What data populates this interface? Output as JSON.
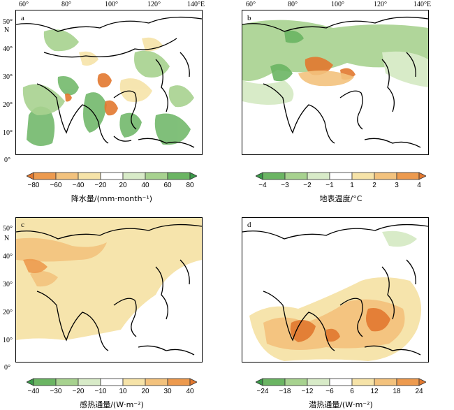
{
  "lon_labels_top": [
    "60°",
    "80°",
    "100°",
    "120°",
    "140°E"
  ],
  "lat_labels": [
    "50°",
    "40°",
    "30°",
    "20°",
    "10°",
    "0°"
  ],
  "lat_letter": "N",
  "panels": {
    "a": {
      "label": "a",
      "colorbar_title": "降水量/(mm·month⁻¹)",
      "ticks": [
        "−80",
        "−60",
        "−40",
        "−20",
        "20",
        "40",
        "60",
        "80"
      ],
      "colors": [
        "#e2782f",
        "#ed9a4e",
        "#f3c27d",
        "#f6e3a8",
        "#ffffff",
        "#d8ebc8",
        "#a7d28f",
        "#6bb563",
        "#3b9a4a"
      ]
    },
    "b": {
      "label": "b",
      "colorbar_title": "地表温度/°C",
      "ticks": [
        "−4",
        "−3",
        "−2",
        "−1",
        "1",
        "2",
        "3",
        "4"
      ],
      "colors": [
        "#3b9a4a",
        "#6bb563",
        "#a7d28f",
        "#d8ebc8",
        "#ffffff",
        "#f6e3a8",
        "#f3c27d",
        "#ed9a4e",
        "#e2782f"
      ]
    },
    "c": {
      "label": "c",
      "colorbar_title": "感热通量/(W·m⁻²)",
      "ticks": [
        "−40",
        "−30",
        "−20",
        "−10",
        "10",
        "20",
        "30",
        "40"
      ],
      "colors": [
        "#3b9a4a",
        "#6bb563",
        "#a7d28f",
        "#d8ebc8",
        "#ffffff",
        "#f6e3a8",
        "#f3c27d",
        "#ed9a4e",
        "#e2782f"
      ]
    },
    "d": {
      "label": "d",
      "colorbar_title": "潜热通量/(W·m⁻²)",
      "ticks": [
        "−24",
        "−18",
        "−12",
        "−6",
        "6",
        "12",
        "18",
        "24"
      ],
      "colors": [
        "#3b9a4a",
        "#6bb563",
        "#a7d28f",
        "#d8ebc8",
        "#ffffff",
        "#f6e3a8",
        "#f3c27d",
        "#ed9a4e",
        "#e2782f"
      ]
    }
  }
}
